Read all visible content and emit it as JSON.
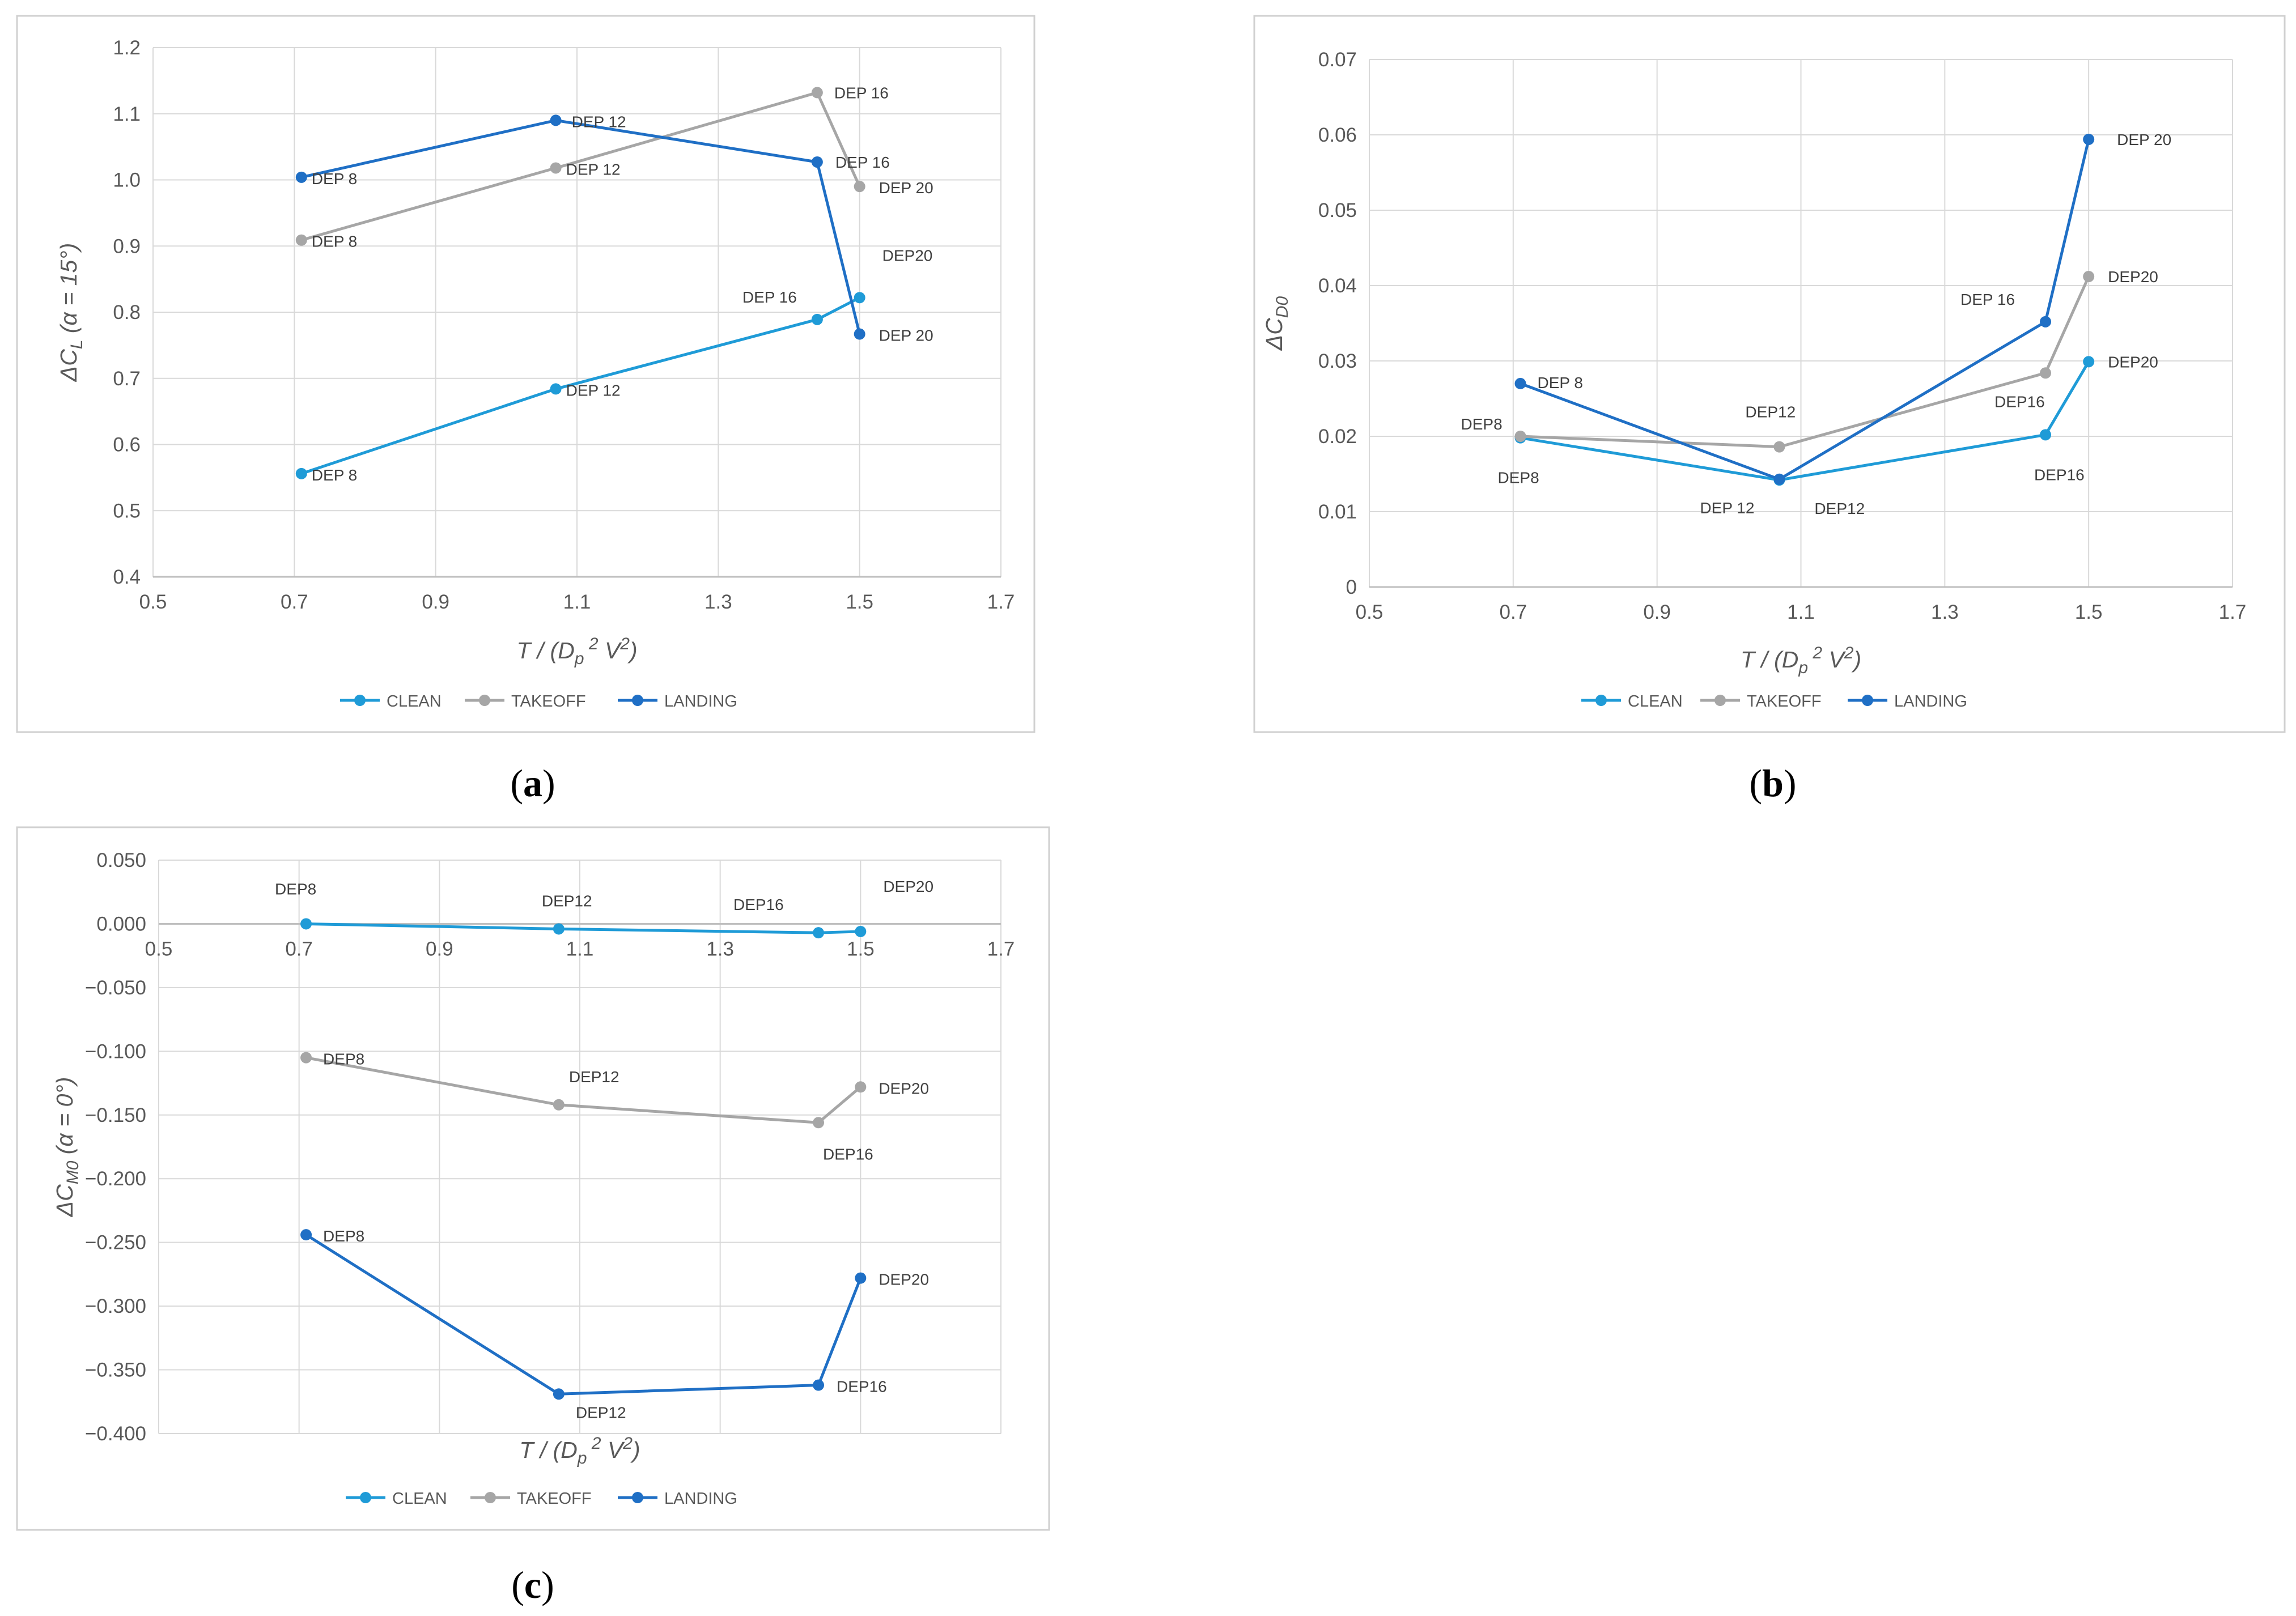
{
  "colors": {
    "clean": "#1f9bd7",
    "takeoff": "#a6a6a6",
    "landing": "#1f6fc5",
    "grid": "#d9d9d9",
    "axis": "#bfbfbf",
    "frame": "#d0d0d0"
  },
  "chart_data": [
    {
      "id": "a",
      "panel_label": "a",
      "type": "line",
      "xlim": [
        0.5,
        1.7
      ],
      "xticks": [
        0.5,
        0.7,
        0.9,
        1.1,
        1.3,
        1.5,
        1.7
      ],
      "xtick_labels": [
        "0.5",
        "0.7",
        "0.9",
        "1.1",
        "1.3",
        "1.5",
        "1.7"
      ],
      "ylim": [
        0.4,
        1.2
      ],
      "yticks": [
        0.4,
        0.5,
        0.6,
        0.7,
        0.8,
        0.9,
        1.0,
        1.1,
        1.2
      ],
      "ytick_labels": [
        "0.4",
        "0.5",
        "0.6",
        "0.7",
        "0.8",
        "0.9",
        "1.0",
        "1.1",
        "1.2"
      ],
      "ylabel": "ΔC_L (α = 15°)",
      "xlabel": "T / (D_p^2 V^2)",
      "grid": true,
      "legend": "bottom",
      "series": [
        {
          "name": "CLEAN",
          "color_key": "clean",
          "x": [
            0.71,
            1.07,
            1.44,
            1.5
          ],
          "y": [
            0.556,
            0.684,
            0.789,
            0.822
          ],
          "labels": [
            "DEP 8",
            "DEP 12",
            "DEP 16",
            "DEP20"
          ]
        },
        {
          "name": "TAKEOFF",
          "color_key": "takeoff",
          "x": [
            0.71,
            1.07,
            1.44,
            1.5
          ],
          "y": [
            0.909,
            1.018,
            1.132,
            0.99
          ],
          "labels": [
            "DEP 8",
            "DEP 12",
            "DEP 16",
            "DEP 20"
          ]
        },
        {
          "name": "LANDING",
          "color_key": "landing",
          "x": [
            0.71,
            1.07,
            1.44,
            1.5
          ],
          "y": [
            1.004,
            1.09,
            1.027,
            0.767
          ],
          "labels": [
            "DEP 8",
            "DEP 12",
            "DEP 16",
            "DEP 20"
          ]
        }
      ]
    },
    {
      "id": "b",
      "panel_label": "b",
      "type": "line",
      "xlim": [
        0.5,
        1.7
      ],
      "xticks": [
        0.5,
        0.7,
        0.9,
        1.1,
        1.3,
        1.5,
        1.7
      ],
      "xtick_labels": [
        "0.5",
        "0.7",
        "0.9",
        "1.1",
        "1.3",
        "1.5",
        "1.7"
      ],
      "ylim": [
        0,
        0.07
      ],
      "yticks": [
        0,
        0.01,
        0.02,
        0.03,
        0.04,
        0.05,
        0.06,
        0.07
      ],
      "ytick_labels": [
        "0",
        "0.01",
        "0.02",
        "0.03",
        "0.04",
        "0.05",
        "0.06",
        "0.07"
      ],
      "ylabel": "ΔC_D0",
      "xlabel": "T / (D_p^2 V^2)",
      "grid": true,
      "legend": "bottom",
      "series": [
        {
          "name": "CLEAN",
          "color_key": "clean",
          "x": [
            0.71,
            1.07,
            1.44,
            1.5
          ],
          "y": [
            0.0198,
            0.0142,
            0.0202,
            0.0299
          ],
          "labels": [
            "DEP8",
            "DEP12",
            "DEP16",
            "DEP20"
          ]
        },
        {
          "name": "TAKEOFF",
          "color_key": "takeoff",
          "x": [
            0.71,
            1.07,
            1.44,
            1.5
          ],
          "y": [
            0.02,
            0.0186,
            0.0284,
            0.0412
          ],
          "labels": [
            "DEP8",
            "DEP12",
            "DEP16",
            "DEP20"
          ]
        },
        {
          "name": "LANDING",
          "color_key": "landing",
          "x": [
            0.71,
            1.07,
            1.44,
            1.5
          ],
          "y": [
            0.027,
            0.0143,
            0.0352,
            0.0594
          ],
          "labels": [
            "DEP 8",
            "DEP 12",
            "DEP 16",
            "DEP 20"
          ]
        }
      ]
    },
    {
      "id": "c",
      "panel_label": "c",
      "type": "line",
      "xlim": [
        0.5,
        1.7
      ],
      "xticks": [
        0.5,
        0.7,
        0.9,
        1.1,
        1.3,
        1.5,
        1.7
      ],
      "xtick_labels": [
        "0.5",
        "0.7",
        "0.9",
        "1.1",
        "1.3",
        "1.5",
        "1.7"
      ],
      "ylim": [
        -0.4,
        0.05
      ],
      "yticks": [
        0.05,
        0,
        -0.05,
        -0.1,
        -0.15,
        -0.2,
        -0.25,
        -0.3,
        -0.35,
        -0.4
      ],
      "ytick_labels": [
        "0.050",
        "0.000",
        "−0.050",
        "−0.100",
        "−0.150",
        "−0.200",
        "−0.250",
        "−0.300",
        "−0.350",
        "−0.400"
      ],
      "ylabel": "ΔC_M0 (α = 0°)",
      "xlabel": "T / (D_p^2 V^2)",
      "grid": true,
      "legend": "bottom",
      "series": [
        {
          "name": "CLEAN",
          "color_key": "clean",
          "x": [
            0.71,
            1.07,
            1.44,
            1.5
          ],
          "y": [
            0.0,
            -0.004,
            -0.007,
            -0.006
          ],
          "labels": [
            "DEP8",
            "DEP12",
            "DEP16",
            "DEP20"
          ]
        },
        {
          "name": "TAKEOFF",
          "color_key": "takeoff",
          "x": [
            0.71,
            1.07,
            1.44,
            1.5
          ],
          "y": [
            -0.105,
            -0.142,
            -0.156,
            -0.128
          ],
          "labels": [
            "DEP8",
            "DEP12",
            "DEP16",
            "DEP20"
          ]
        },
        {
          "name": "LANDING",
          "color_key": "landing",
          "x": [
            0.71,
            1.07,
            1.44,
            1.5
          ],
          "y": [
            -0.244,
            -0.369,
            -0.362,
            -0.278
          ],
          "labels": [
            "DEP8",
            "DEP12",
            "DEP16",
            "DEP20"
          ]
        }
      ]
    }
  ]
}
